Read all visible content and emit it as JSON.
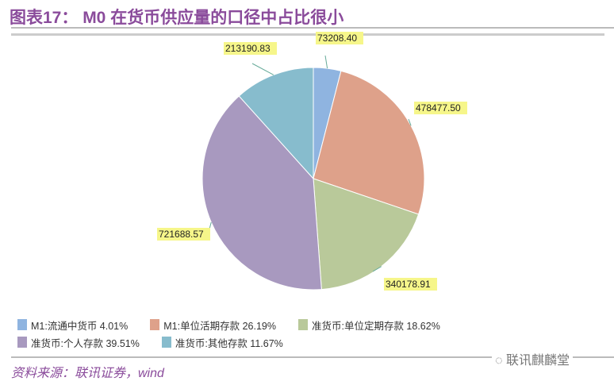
{
  "title": "图表17： M0 在货币供应量的口径中占比很小",
  "source": "资料来源：联讯证券，wind",
  "watermark": "联讯麒麟堂",
  "chart_data": {
    "type": "pie",
    "title": "图表17： M0 在货币供应量的口径中占比很小",
    "legend_position": "bottom",
    "slices": [
      {
        "name": "M1:流通中货币",
        "value": 73208.4,
        "percent": "4.01%",
        "color": "#8fb4e0",
        "label": "73208.40",
        "legend": "M1:流通中货币 4.01%"
      },
      {
        "name": "M1:单位活期存款",
        "value": 478477.5,
        "percent": "26.19%",
        "color": "#dea18a",
        "label": "478477.50",
        "legend": "M1:单位活期存款 26.19%"
      },
      {
        "name": "准货币:单位定期存款",
        "value": 340178.91,
        "percent": "18.62%",
        "color": "#b9c99a",
        "label": "340178.91",
        "legend": "准货币:单位定期存款 18.62%"
      },
      {
        "name": "准货币:个人存款",
        "value": 721688.57,
        "percent": "39.51%",
        "color": "#a899bf",
        "label": "721688.57",
        "legend": "准货币:个人存款 39.51%"
      },
      {
        "name": "准货币:其他存款",
        "value": 213190.83,
        "percent": "11.67%",
        "color": "#87bccd",
        "label": "213190.83",
        "legend": "准货币:其他存款 11.67%"
      }
    ]
  }
}
